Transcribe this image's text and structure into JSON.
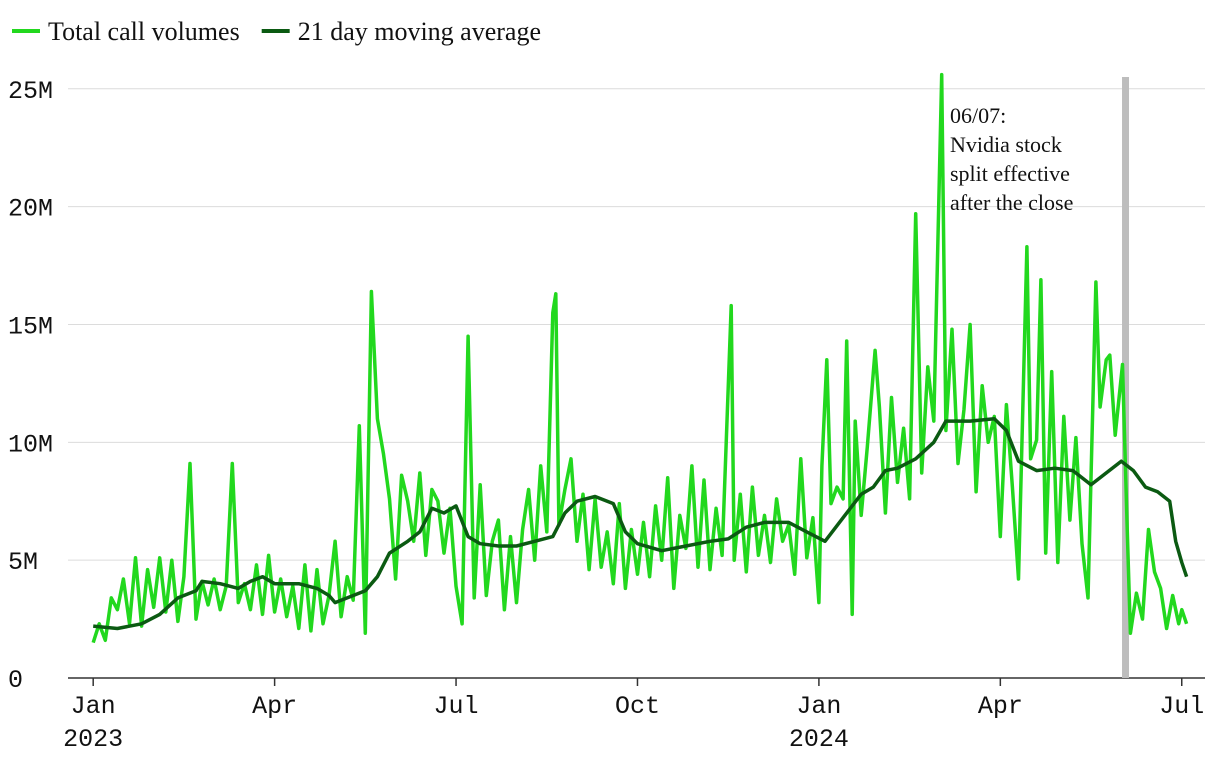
{
  "chart_data": {
    "type": "line",
    "xlim": [
      -0.4,
      18.5
    ],
    "xticks": [
      {
        "value": 0,
        "label": "Jan 2023"
      },
      {
        "value": 3,
        "label": "Apr"
      },
      {
        "value": 6,
        "label": "Jul"
      },
      {
        "value": 9,
        "label": "Oct"
      },
      {
        "value": 12,
        "label": "Jan 2024"
      },
      {
        "value": 15,
        "label": "Apr"
      },
      {
        "value": 18,
        "label": "Jul"
      }
    ],
    "ylim": [
      0,
      25.5
    ],
    "yticks": [
      0,
      {
        "value": 5,
        "label": "5M"
      },
      {
        "value": 10,
        "label": "10M"
      },
      {
        "value": 15,
        "label": "15M"
      },
      {
        "value": 20,
        "label": "20M"
      },
      {
        "value": 25,
        "label": "25M"
      }
    ],
    "grid": true,
    "legend": "top-left",
    "annotation": {
      "x": 17.07,
      "color": "#bdbdbd",
      "lines": [
        "06/07:",
        "Nvidia stock",
        "split effective",
        "after the close"
      ]
    },
    "series": [
      {
        "name": "Total call volumes",
        "color": "#22d81e",
        "x": [
          0.0,
          0.1,
          0.2,
          0.3,
          0.4,
          0.5,
          0.6,
          0.7,
          0.8,
          0.9,
          1.0,
          1.1,
          1.2,
          1.3,
          1.4,
          1.5,
          1.6,
          1.7,
          1.8,
          1.9,
          2.0,
          2.1,
          2.2,
          2.3,
          2.4,
          2.5,
          2.6,
          2.7,
          2.8,
          2.9,
          3.0,
          3.1,
          3.2,
          3.3,
          3.4,
          3.5,
          3.6,
          3.7,
          3.8,
          3.9,
          4.0,
          4.1,
          4.2,
          4.3,
          4.4,
          4.5,
          4.6,
          4.7,
          4.8,
          4.9,
          5.0,
          5.1,
          5.2,
          5.3,
          5.4,
          5.5,
          5.6,
          5.7,
          5.8,
          5.9,
          6.0,
          6.1,
          6.2,
          6.3,
          6.4,
          6.5,
          6.6,
          6.7,
          6.8,
          6.9,
          7.0,
          7.1,
          7.2,
          7.3,
          7.4,
          7.5,
          7.6,
          7.65,
          7.7,
          7.8,
          7.9,
          8.0,
          8.1,
          8.2,
          8.3,
          8.4,
          8.5,
          8.6,
          8.7,
          8.8,
          8.9,
          9.0,
          9.1,
          9.2,
          9.3,
          9.4,
          9.5,
          9.6,
          9.7,
          9.8,
          9.9,
          10.0,
          10.1,
          10.2,
          10.3,
          10.4,
          10.55,
          10.6,
          10.7,
          10.8,
          10.9,
          11.0,
          11.1,
          11.2,
          11.3,
          11.4,
          11.5,
          11.6,
          11.7,
          11.8,
          11.9,
          12.0,
          12.05,
          12.13,
          12.2,
          12.3,
          12.4,
          12.46,
          12.55,
          12.6,
          12.7,
          12.8,
          12.93,
          13.0,
          13.1,
          13.2,
          13.3,
          13.4,
          13.5,
          13.6,
          13.7,
          13.8,
          13.9,
          14.03,
          14.1,
          14.2,
          14.3,
          14.4,
          14.5,
          14.6,
          14.7,
          14.8,
          14.9,
          15.0,
          15.1,
          15.2,
          15.3,
          15.44,
          15.5,
          15.6,
          15.67,
          15.75,
          15.85,
          15.95,
          16.05,
          16.15,
          16.25,
          16.35,
          16.45,
          16.58,
          16.65,
          16.75,
          16.81,
          16.9,
          17.02,
          17.1,
          17.15,
          17.25,
          17.35,
          17.45,
          17.55,
          17.65,
          17.75,
          17.85,
          17.95,
          18.0,
          18.08
        ],
        "values": [
          1.5,
          2.3,
          1.6,
          3.4,
          2.9,
          4.2,
          2.3,
          5.1,
          2.2,
          4.6,
          3.0,
          5.1,
          2.8,
          5.0,
          2.4,
          4.3,
          9.1,
          2.5,
          4.1,
          3.1,
          4.2,
          2.9,
          3.9,
          9.1,
          3.2,
          4.0,
          2.9,
          4.8,
          2.7,
          5.2,
          2.8,
          4.2,
          2.6,
          3.9,
          2.1,
          4.8,
          2.0,
          4.6,
          2.3,
          3.5,
          5.8,
          2.6,
          4.3,
          3.3,
          10.7,
          1.9,
          16.4,
          11.0,
          9.5,
          7.6,
          4.2,
          8.6,
          7.5,
          5.8,
          8.7,
          5.2,
          8.0,
          7.5,
          5.3,
          7.2,
          3.9,
          2.3,
          14.5,
          3.4,
          8.2,
          3.5,
          5.8,
          6.7,
          2.9,
          6.0,
          3.2,
          6.3,
          8.0,
          5.0,
          9.0,
          6.2,
          15.5,
          16.3,
          6.5,
          8.0,
          9.3,
          5.8,
          7.8,
          4.6,
          7.6,
          4.7,
          6.2,
          4.0,
          7.4,
          3.8,
          6.3,
          4.4,
          6.6,
          4.3,
          7.3,
          5.0,
          8.5,
          3.8,
          6.9,
          5.5,
          9.0,
          4.7,
          8.4,
          4.6,
          7.2,
          5.2,
          15.8,
          5.0,
          7.8,
          4.5,
          8.1,
          5.2,
          6.9,
          4.9,
          7.6,
          5.8,
          6.5,
          4.4,
          9.3,
          5.1,
          6.8,
          3.2,
          9.0,
          13.5,
          7.4,
          8.1,
          7.6,
          14.3,
          2.7,
          10.9,
          6.9,
          9.8,
          13.9,
          11.5,
          7.0,
          11.9,
          8.3,
          10.6,
          7.6,
          19.7,
          8.7,
          13.2,
          10.9,
          25.6,
          10.5,
          14.8,
          9.1,
          11.4,
          15.0,
          7.9,
          12.4,
          10.0,
          11.1,
          6.0,
          11.6,
          8.1,
          4.2,
          18.3,
          9.3,
          10.1,
          16.9,
          5.3,
          13.0,
          4.9,
          11.1,
          6.7,
          10.2,
          5.7,
          3.4,
          16.8,
          11.5,
          13.5,
          13.7,
          10.3,
          13.3,
          6.2,
          1.9,
          3.6,
          2.5,
          6.3,
          4.5,
          3.8,
          2.1,
          3.5,
          2.3,
          2.9,
          2.3
        ]
      },
      {
        "name": "21 day moving average",
        "color": "#0b5a12",
        "x": [
          0.0,
          0.4,
          0.8,
          1.1,
          1.4,
          1.7,
          1.8,
          2.1,
          2.4,
          2.6,
          2.8,
          3.0,
          3.4,
          3.7,
          3.9,
          4.0,
          4.3,
          4.5,
          4.7,
          4.9,
          5.2,
          5.4,
          5.6,
          5.8,
          6.0,
          6.2,
          6.4,
          6.7,
          7.0,
          7.3,
          7.6,
          7.8,
          8.0,
          8.3,
          8.6,
          8.8,
          9.0,
          9.4,
          9.8,
          10.2,
          10.5,
          10.8,
          11.1,
          11.5,
          11.8,
          12.1,
          12.4,
          12.7,
          12.9,
          13.1,
          13.3,
          13.6,
          13.9,
          14.1,
          14.5,
          14.9,
          15.1,
          15.3,
          15.6,
          15.9,
          16.2,
          16.5,
          16.8,
          17.0,
          17.2,
          17.4,
          17.6,
          17.8,
          17.9,
          18.0,
          18.08
        ],
        "values": [
          2.2,
          2.1,
          2.3,
          2.7,
          3.4,
          3.7,
          4.1,
          4.0,
          3.8,
          4.1,
          4.3,
          4.0,
          4.0,
          3.8,
          3.5,
          3.2,
          3.5,
          3.7,
          4.3,
          5.3,
          5.8,
          6.2,
          7.2,
          7.0,
          7.3,
          6.0,
          5.7,
          5.6,
          5.6,
          5.8,
          6.0,
          7.0,
          7.5,
          7.7,
          7.4,
          6.2,
          5.7,
          5.4,
          5.6,
          5.8,
          5.9,
          6.4,
          6.6,
          6.6,
          6.2,
          5.8,
          6.8,
          7.8,
          8.1,
          8.8,
          8.9,
          9.3,
          10.0,
          10.9,
          10.9,
          11.0,
          10.5,
          9.2,
          8.8,
          8.9,
          8.8,
          8.2,
          8.8,
          9.2,
          8.8,
          8.1,
          7.9,
          7.5,
          5.8,
          4.9,
          4.3
        ]
      }
    ]
  }
}
